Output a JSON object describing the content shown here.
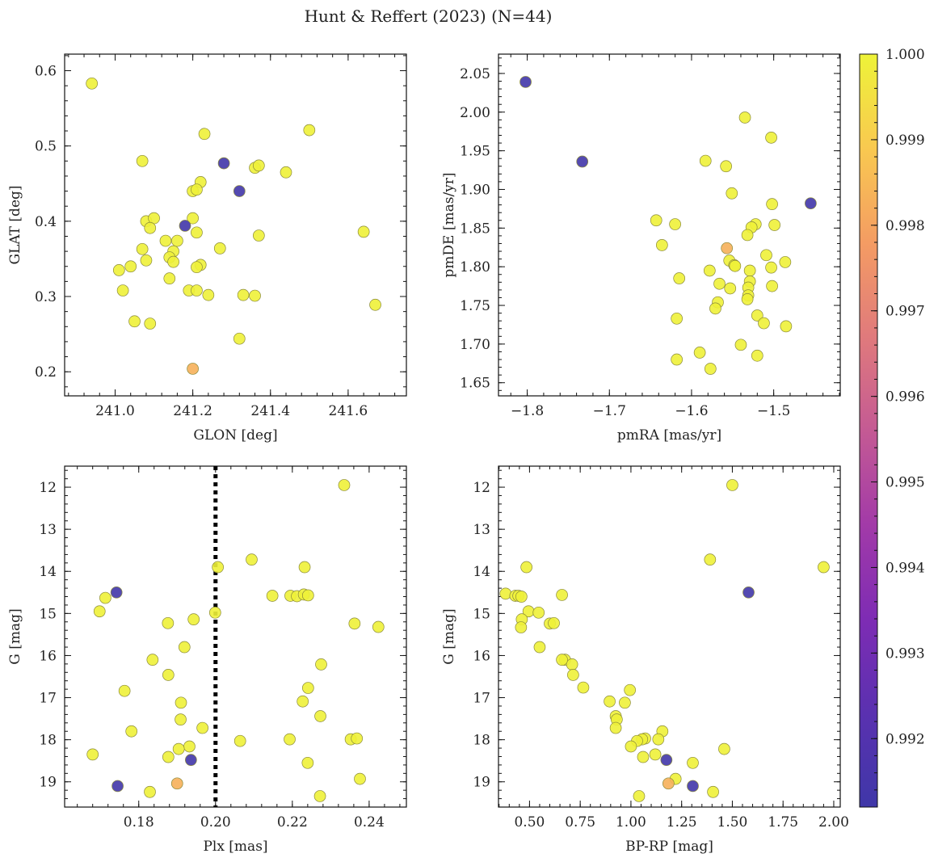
{
  "figure": {
    "title": "Hunt & Reffert (2023) (N=44)"
  },
  "colorbar": {
    "colormap": "plasma",
    "vmin": 0.9912,
    "vmax": 1.0,
    "ticks": [
      0.992,
      0.993,
      0.994,
      0.995,
      0.996,
      0.997,
      0.998,
      0.999,
      1.0
    ],
    "tick_labels": [
      "0.992",
      "0.993",
      "0.994",
      "0.995",
      "0.996",
      "0.997",
      "0.998",
      "0.999",
      "1.000"
    ]
  },
  "colors": {
    "high": "#eef338",
    "mid": "#f5a85a",
    "low": "#3f37a8",
    "point_edge": "#8a8a3a"
  },
  "chart_data": [
    {
      "type": "scatter",
      "name": "panel-glon-glat",
      "xlabel": "GLON [deg]",
      "ylabel": "GLAT [deg]",
      "xlim": [
        240.87,
        241.75
      ],
      "ylim": [
        0.168,
        0.622
      ],
      "xticks": [
        241.0,
        241.2,
        241.4,
        241.6
      ],
      "xtick_labels": [
        "241.0",
        "241.2",
        "241.4",
        "241.6"
      ],
      "yticks": [
        0.2,
        0.3,
        0.4,
        0.5,
        0.6
      ],
      "ytick_labels": [
        "0.2",
        "0.3",
        "0.4",
        "0.5",
        "0.6"
      ],
      "y_inverted": false,
      "points": [
        {
          "x": 240.94,
          "y": 0.583,
          "c": 0.99995
        },
        {
          "x": 241.07,
          "y": 0.48,
          "c": 0.99995
        },
        {
          "x": 241.23,
          "y": 0.516,
          "c": 0.99995
        },
        {
          "x": 241.5,
          "y": 0.521,
          "c": 0.99995
        },
        {
          "x": 241.28,
          "y": 0.477,
          "c": 0.9913
        },
        {
          "x": 241.32,
          "y": 0.44,
          "c": 0.9913
        },
        {
          "x": 241.18,
          "y": 0.394,
          "c": 0.9913
        },
        {
          "x": 241.2,
          "y": 0.204,
          "c": 0.9983
        },
        {
          "x": 241.36,
          "y": 0.471,
          "c": 0.99995
        },
        {
          "x": 241.37,
          "y": 0.474,
          "c": 0.99995
        },
        {
          "x": 241.44,
          "y": 0.465,
          "c": 0.99995
        },
        {
          "x": 241.22,
          "y": 0.452,
          "c": 0.99995
        },
        {
          "x": 241.2,
          "y": 0.44,
          "c": 0.99995
        },
        {
          "x": 241.21,
          "y": 0.442,
          "c": 0.99995
        },
        {
          "x": 241.08,
          "y": 0.4,
          "c": 0.99995
        },
        {
          "x": 241.1,
          "y": 0.404,
          "c": 0.99995
        },
        {
          "x": 241.2,
          "y": 0.404,
          "c": 0.99995
        },
        {
          "x": 241.09,
          "y": 0.391,
          "c": 0.99995
        },
        {
          "x": 241.21,
          "y": 0.385,
          "c": 0.99995
        },
        {
          "x": 241.64,
          "y": 0.386,
          "c": 0.99995
        },
        {
          "x": 241.37,
          "y": 0.381,
          "c": 0.99995
        },
        {
          "x": 241.13,
          "y": 0.374,
          "c": 0.99995
        },
        {
          "x": 241.07,
          "y": 0.363,
          "c": 0.99995
        },
        {
          "x": 241.27,
          "y": 0.364,
          "c": 0.99995
        },
        {
          "x": 241.15,
          "y": 0.36,
          "c": 0.99995
        },
        {
          "x": 241.14,
          "y": 0.352,
          "c": 0.99995
        },
        {
          "x": 241.08,
          "y": 0.348,
          "c": 0.99995
        },
        {
          "x": 241.15,
          "y": 0.346,
          "c": 0.99995
        },
        {
          "x": 241.04,
          "y": 0.34,
          "c": 0.99995
        },
        {
          "x": 241.22,
          "y": 0.342,
          "c": 0.99995
        },
        {
          "x": 241.21,
          "y": 0.339,
          "c": 0.99995
        },
        {
          "x": 241.01,
          "y": 0.335,
          "c": 0.99995
        },
        {
          "x": 241.14,
          "y": 0.324,
          "c": 0.99995
        },
        {
          "x": 241.02,
          "y": 0.308,
          "c": 0.99995
        },
        {
          "x": 241.19,
          "y": 0.308,
          "c": 0.99995
        },
        {
          "x": 241.21,
          "y": 0.308,
          "c": 0.99995
        },
        {
          "x": 241.24,
          "y": 0.302,
          "c": 0.99995
        },
        {
          "x": 241.33,
          "y": 0.302,
          "c": 0.99995
        },
        {
          "x": 241.36,
          "y": 0.301,
          "c": 0.99995
        },
        {
          "x": 241.67,
          "y": 0.289,
          "c": 0.99995
        },
        {
          "x": 241.05,
          "y": 0.267,
          "c": 0.99995
        },
        {
          "x": 241.09,
          "y": 0.264,
          "c": 0.99995
        },
        {
          "x": 241.32,
          "y": 0.244,
          "c": 0.99995
        },
        {
          "x": 241.16,
          "y": 0.374,
          "c": 0.99995
        }
      ]
    },
    {
      "type": "scatter",
      "name": "panel-pmra-pmde",
      "xlabel": "pmRA [mas/yr]",
      "ylabel": "pmDE [mas/yr]",
      "xlim": [
        -1.835,
        -1.419
      ],
      "ylim": [
        1.633,
        2.075
      ],
      "xticks": [
        -1.8,
        -1.7,
        -1.6,
        -1.5
      ],
      "xtick_labels": [
        "−1.8",
        "−1.7",
        "−1.6",
        "−1.5"
      ],
      "yticks": [
        1.65,
        1.7,
        1.75,
        1.8,
        1.85,
        1.9,
        1.95,
        2.0,
        2.05
      ],
      "ytick_labels": [
        "1.65",
        "1.70",
        "1.75",
        "1.80",
        "1.85",
        "1.90",
        "1.95",
        "2.00",
        "2.05"
      ],
      "y_inverted": false,
      "points": [
        {
          "x": -1.802,
          "y": 2.039,
          "c": 0.9913
        },
        {
          "x": -1.733,
          "y": 1.936,
          "c": 0.9913
        },
        {
          "x": -1.455,
          "y": 1.882,
          "c": 0.9913
        },
        {
          "x": -1.557,
          "y": 1.824,
          "c": 0.9983
        },
        {
          "x": -1.535,
          "y": 1.993,
          "c": 0.99995
        },
        {
          "x": -1.503,
          "y": 1.967,
          "c": 0.99995
        },
        {
          "x": -1.583,
          "y": 1.937,
          "c": 0.99995
        },
        {
          "x": -1.558,
          "y": 1.93,
          "c": 0.99995
        },
        {
          "x": -1.551,
          "y": 1.895,
          "c": 0.99995
        },
        {
          "x": -1.502,
          "y": 1.881,
          "c": 0.99995
        },
        {
          "x": -1.643,
          "y": 1.86,
          "c": 0.99995
        },
        {
          "x": -1.62,
          "y": 1.855,
          "c": 0.99995
        },
        {
          "x": -1.522,
          "y": 1.855,
          "c": 0.99995
        },
        {
          "x": -1.527,
          "y": 1.851,
          "c": 0.99995
        },
        {
          "x": -1.499,
          "y": 1.854,
          "c": 0.99995
        },
        {
          "x": -1.532,
          "y": 1.841,
          "c": 0.99995
        },
        {
          "x": -1.636,
          "y": 1.828,
          "c": 0.99995
        },
        {
          "x": -1.509,
          "y": 1.815,
          "c": 0.99995
        },
        {
          "x": -1.554,
          "y": 1.808,
          "c": 0.99995
        },
        {
          "x": -1.486,
          "y": 1.806,
          "c": 0.99995
        },
        {
          "x": -1.548,
          "y": 1.802,
          "c": 0.99995
        },
        {
          "x": -1.547,
          "y": 1.801,
          "c": 0.99995
        },
        {
          "x": -1.503,
          "y": 1.799,
          "c": 0.99995
        },
        {
          "x": -1.529,
          "y": 1.795,
          "c": 0.99995
        },
        {
          "x": -1.578,
          "y": 1.795,
          "c": 0.99995
        },
        {
          "x": -1.615,
          "y": 1.785,
          "c": 0.99995
        },
        {
          "x": -1.529,
          "y": 1.781,
          "c": 0.99995
        },
        {
          "x": -1.566,
          "y": 1.778,
          "c": 0.99995
        },
        {
          "x": -1.502,
          "y": 1.775,
          "c": 0.99995
        },
        {
          "x": -1.531,
          "y": 1.773,
          "c": 0.99995
        },
        {
          "x": -1.553,
          "y": 1.772,
          "c": 0.99995
        },
        {
          "x": -1.531,
          "y": 1.763,
          "c": 0.99995
        },
        {
          "x": -1.532,
          "y": 1.758,
          "c": 0.99995
        },
        {
          "x": -1.568,
          "y": 1.754,
          "c": 0.99995
        },
        {
          "x": -1.571,
          "y": 1.746,
          "c": 0.99995
        },
        {
          "x": -1.52,
          "y": 1.737,
          "c": 0.99995
        },
        {
          "x": -1.618,
          "y": 1.733,
          "c": 0.99995
        },
        {
          "x": -1.512,
          "y": 1.727,
          "c": 0.99995
        },
        {
          "x": -1.485,
          "y": 1.723,
          "c": 0.99995
        },
        {
          "x": -1.54,
          "y": 1.699,
          "c": 0.99995
        },
        {
          "x": -1.59,
          "y": 1.689,
          "c": 0.99995
        },
        {
          "x": -1.52,
          "y": 1.685,
          "c": 0.99995
        },
        {
          "x": -1.618,
          "y": 1.68,
          "c": 0.99995
        },
        {
          "x": -1.577,
          "y": 1.668,
          "c": 0.99995
        }
      ]
    },
    {
      "type": "scatter",
      "name": "panel-plx-g",
      "xlabel": "Plx [mas]",
      "ylabel": "G [mag]",
      "xlim": [
        0.1607,
        0.2497
      ],
      "ylim": [
        19.6,
        11.5
      ],
      "xticks": [
        0.18,
        0.2,
        0.22,
        0.24
      ],
      "xtick_labels": [
        "0.18",
        "0.20",
        "0.22",
        "0.24"
      ],
      "yticks": [
        12,
        13,
        14,
        15,
        16,
        17,
        18,
        19
      ],
      "ytick_labels": [
        "12",
        "13",
        "14",
        "15",
        "16",
        "17",
        "18",
        "19"
      ],
      "y_inverted": true,
      "vline": {
        "x": 0.2,
        "style": "dotted"
      },
      "points": [
        {
          "x": 0.2335,
          "y": 11.95,
          "c": 0.99995
        },
        {
          "x": 0.2094,
          "y": 13.72,
          "c": 0.99995
        },
        {
          "x": 0.2006,
          "y": 13.9,
          "c": 0.99995
        },
        {
          "x": 0.2232,
          "y": 13.9,
          "c": 0.99995
        },
        {
          "x": 0.1742,
          "y": 14.5,
          "c": 0.9913
        },
        {
          "x": 0.1713,
          "y": 14.63,
          "c": 0.99995
        },
        {
          "x": 0.2148,
          "y": 14.58,
          "c": 0.99995
        },
        {
          "x": 0.2195,
          "y": 14.58,
          "c": 0.99995
        },
        {
          "x": 0.2212,
          "y": 14.59,
          "c": 0.99995
        },
        {
          "x": 0.223,
          "y": 14.55,
          "c": 0.99995
        },
        {
          "x": 0.2241,
          "y": 14.57,
          "c": 0.99995
        },
        {
          "x": 0.1698,
          "y": 14.95,
          "c": 0.99995
        },
        {
          "x": 0.1999,
          "y": 14.98,
          "c": 0.99995
        },
        {
          "x": 0.1943,
          "y": 15.14,
          "c": 0.99995
        },
        {
          "x": 0.1876,
          "y": 15.23,
          "c": 0.99995
        },
        {
          "x": 0.2362,
          "y": 15.24,
          "c": 0.99995
        },
        {
          "x": 0.2424,
          "y": 15.32,
          "c": 0.99995
        },
        {
          "x": 0.1919,
          "y": 15.8,
          "c": 0.99995
        },
        {
          "x": 0.1836,
          "y": 16.1,
          "c": 0.99995
        },
        {
          "x": 0.2275,
          "y": 16.21,
          "c": 0.99995
        },
        {
          "x": 0.1877,
          "y": 16.46,
          "c": 0.99995
        },
        {
          "x": 0.2241,
          "y": 16.77,
          "c": 0.99995
        },
        {
          "x": 0.1763,
          "y": 16.84,
          "c": 0.99995
        },
        {
          "x": 0.191,
          "y": 17.12,
          "c": 0.99995
        },
        {
          "x": 0.2227,
          "y": 17.09,
          "c": 0.99995
        },
        {
          "x": 0.2273,
          "y": 17.44,
          "c": 0.99995
        },
        {
          "x": 0.1909,
          "y": 17.52,
          "c": 0.99995
        },
        {
          "x": 0.1966,
          "y": 17.72,
          "c": 0.99995
        },
        {
          "x": 0.1781,
          "y": 17.8,
          "c": 0.99995
        },
        {
          "x": 0.2064,
          "y": 18.03,
          "c": 0.99995
        },
        {
          "x": 0.2193,
          "y": 17.99,
          "c": 0.99995
        },
        {
          "x": 0.2352,
          "y": 17.99,
          "c": 0.99995
        },
        {
          "x": 0.2368,
          "y": 17.97,
          "c": 0.99995
        },
        {
          "x": 0.1932,
          "y": 18.16,
          "c": 0.99995
        },
        {
          "x": 0.1904,
          "y": 18.22,
          "c": 0.99995
        },
        {
          "x": 0.1877,
          "y": 18.41,
          "c": 0.99995
        },
        {
          "x": 0.1936,
          "y": 18.48,
          "c": 0.9913
        },
        {
          "x": 0.224,
          "y": 18.55,
          "c": 0.99995
        },
        {
          "x": 0.168,
          "y": 18.35,
          "c": 0.99995
        },
        {
          "x": 0.2376,
          "y": 18.93,
          "c": 0.99995
        },
        {
          "x": 0.19,
          "y": 19.04,
          "c": 0.9983
        },
        {
          "x": 0.1745,
          "y": 19.1,
          "c": 0.9913
        },
        {
          "x": 0.1829,
          "y": 19.24,
          "c": 0.99995
        },
        {
          "x": 0.2272,
          "y": 19.34,
          "c": 0.99995
        }
      ]
    },
    {
      "type": "scatter",
      "name": "panel-bprp-g",
      "xlabel": "BP-RP [mag]",
      "ylabel": "G [mag]",
      "xlim": [
        0.347,
        2.032
      ],
      "ylim": [
        19.6,
        11.5
      ],
      "xticks": [
        0.5,
        0.75,
        1.0,
        1.25,
        1.5,
        1.75,
        2.0
      ],
      "xtick_labels": [
        "0.50",
        "0.75",
        "1.00",
        "1.25",
        "1.50",
        "1.75",
        "2.00"
      ],
      "yticks": [
        12,
        13,
        14,
        15,
        16,
        17,
        18,
        19
      ],
      "ytick_labels": [
        "12",
        "13",
        "14",
        "15",
        "16",
        "17",
        "18",
        "19"
      ],
      "y_inverted": true,
      "points": [
        {
          "x": 1.5,
          "y": 11.95,
          "c": 0.99995
        },
        {
          "x": 1.39,
          "y": 13.72,
          "c": 0.99995
        },
        {
          "x": 1.95,
          "y": 13.9,
          "c": 0.99995
        },
        {
          "x": 0.485,
          "y": 13.9,
          "c": 0.99995
        },
        {
          "x": 1.58,
          "y": 14.5,
          "c": 0.9913
        },
        {
          "x": 0.382,
          "y": 14.53,
          "c": 0.99995
        },
        {
          "x": 0.43,
          "y": 14.58,
          "c": 0.99995
        },
        {
          "x": 0.445,
          "y": 14.58,
          "c": 0.99995
        },
        {
          "x": 0.46,
          "y": 14.6,
          "c": 0.99995
        },
        {
          "x": 0.66,
          "y": 14.56,
          "c": 0.99995
        },
        {
          "x": 0.495,
          "y": 14.95,
          "c": 0.99995
        },
        {
          "x": 0.545,
          "y": 14.98,
          "c": 0.99995
        },
        {
          "x": 0.462,
          "y": 15.14,
          "c": 0.99995
        },
        {
          "x": 0.6,
          "y": 15.24,
          "c": 0.99995
        },
        {
          "x": 0.62,
          "y": 15.23,
          "c": 0.99995
        },
        {
          "x": 0.458,
          "y": 15.33,
          "c": 0.99995
        },
        {
          "x": 0.55,
          "y": 15.8,
          "c": 0.99995
        },
        {
          "x": 0.675,
          "y": 16.1,
          "c": 0.99995
        },
        {
          "x": 0.71,
          "y": 16.21,
          "c": 0.99995
        },
        {
          "x": 0.715,
          "y": 16.46,
          "c": 0.99995
        },
        {
          "x": 0.765,
          "y": 16.76,
          "c": 0.99995
        },
        {
          "x": 0.995,
          "y": 16.82,
          "c": 0.99995
        },
        {
          "x": 0.895,
          "y": 17.09,
          "c": 0.99995
        },
        {
          "x": 0.97,
          "y": 17.12,
          "c": 0.99995
        },
        {
          "x": 0.925,
          "y": 17.44,
          "c": 0.99995
        },
        {
          "x": 0.93,
          "y": 17.52,
          "c": 0.99995
        },
        {
          "x": 0.925,
          "y": 17.72,
          "c": 0.99995
        },
        {
          "x": 1.155,
          "y": 17.8,
          "c": 0.99995
        },
        {
          "x": 1.07,
          "y": 17.97,
          "c": 0.99995
        },
        {
          "x": 1.055,
          "y": 17.99,
          "c": 0.99995
        },
        {
          "x": 1.135,
          "y": 17.99,
          "c": 0.99995
        },
        {
          "x": 1.03,
          "y": 18.03,
          "c": 0.99995
        },
        {
          "x": 1.0,
          "y": 18.16,
          "c": 0.99995
        },
        {
          "x": 1.46,
          "y": 18.22,
          "c": 0.99995
        },
        {
          "x": 1.12,
          "y": 18.35,
          "c": 0.99995
        },
        {
          "x": 1.06,
          "y": 18.41,
          "c": 0.99995
        },
        {
          "x": 1.175,
          "y": 18.48,
          "c": 0.9913
        },
        {
          "x": 1.305,
          "y": 18.55,
          "c": 0.99995
        },
        {
          "x": 1.22,
          "y": 18.93,
          "c": 0.99995
        },
        {
          "x": 1.185,
          "y": 19.04,
          "c": 0.9983
        },
        {
          "x": 1.305,
          "y": 19.1,
          "c": 0.9913
        },
        {
          "x": 1.405,
          "y": 19.24,
          "c": 0.99995
        },
        {
          "x": 1.04,
          "y": 19.34,
          "c": 0.99995
        },
        {
          "x": 0.66,
          "y": 16.1,
          "c": 0.99995
        }
      ]
    }
  ]
}
